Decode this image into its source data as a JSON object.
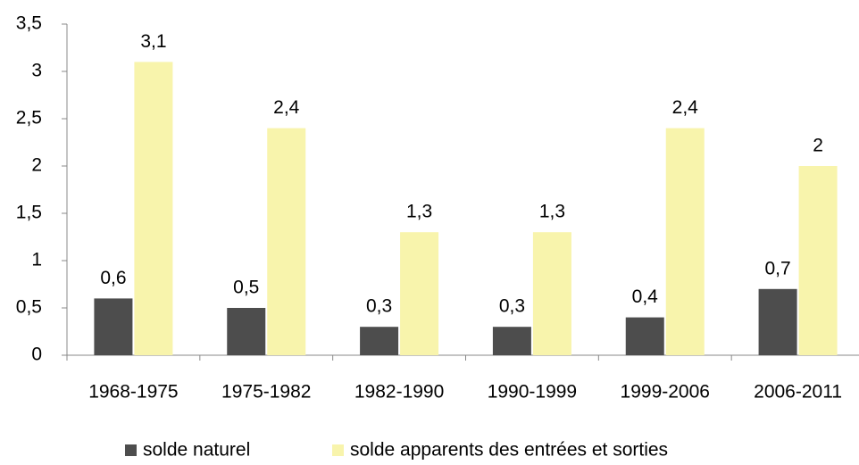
{
  "chart_data": {
    "type": "bar",
    "categories": [
      "1968-1975",
      "1975-1982",
      "1982-1990",
      "1990-1999",
      "1999-2006",
      "2006-2011"
    ],
    "series": [
      {
        "name": "solde naturel",
        "color": "#4d4d4d",
        "values": [
          0.6,
          0.5,
          0.3,
          0.3,
          0.4,
          0.7
        ],
        "value_labels": [
          "0,6",
          "0,5",
          "0,3",
          "0,3",
          "0,4",
          "0,7"
        ]
      },
      {
        "name": "solde apparents des entrées et sorties",
        "color": "#f8f4ac",
        "values": [
          3.1,
          2.4,
          1.3,
          1.3,
          2.4,
          2
        ],
        "value_labels": [
          "3,1",
          "2,4",
          "1,3",
          "1,3",
          "2,4",
          "2"
        ]
      }
    ],
    "ylim": [
      0,
      3.5
    ],
    "yticks": [
      0,
      {
        "value": 0.5,
        "label": "0,5"
      },
      1,
      {
        "value": 1.5,
        "label": "1,5"
      },
      2,
      {
        "value": 2.5,
        "label": "2,5"
      },
      3,
      {
        "value": 3.5,
        "label": "3,5"
      }
    ],
    "grid": false,
    "legend": "bottom"
  }
}
